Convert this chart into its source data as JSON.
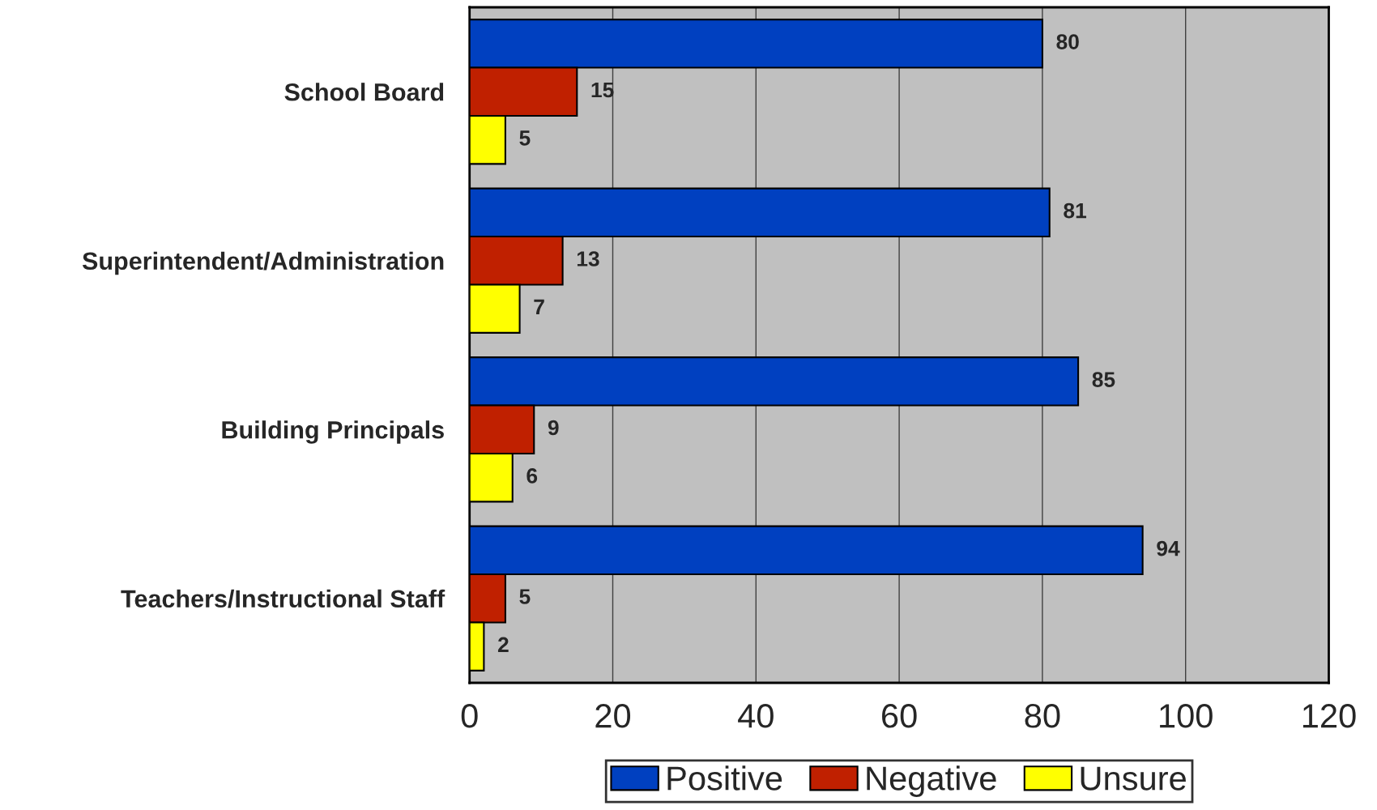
{
  "chart_data": {
    "type": "bar",
    "orientation": "horizontal",
    "categories": [
      "School Board",
      "Superintendent/Administration",
      "Building Principals",
      "Teachers/Instructional Staff"
    ],
    "series": [
      {
        "name": "Positive",
        "color": "#0040c0",
        "values": [
          80,
          81,
          85,
          94
        ]
      },
      {
        "name": "Negative",
        "color": "#c02000",
        "values": [
          15,
          13,
          9,
          5
        ]
      },
      {
        "name": "Unsure",
        "color": "#ffff00",
        "values": [
          5,
          7,
          6,
          2
        ]
      }
    ],
    "xlim": [
      0,
      120
    ],
    "xticks": [
      0,
      20,
      40,
      60,
      80,
      100,
      120
    ],
    "grid": "x",
    "legend": "bottom",
    "data_labels": true
  }
}
